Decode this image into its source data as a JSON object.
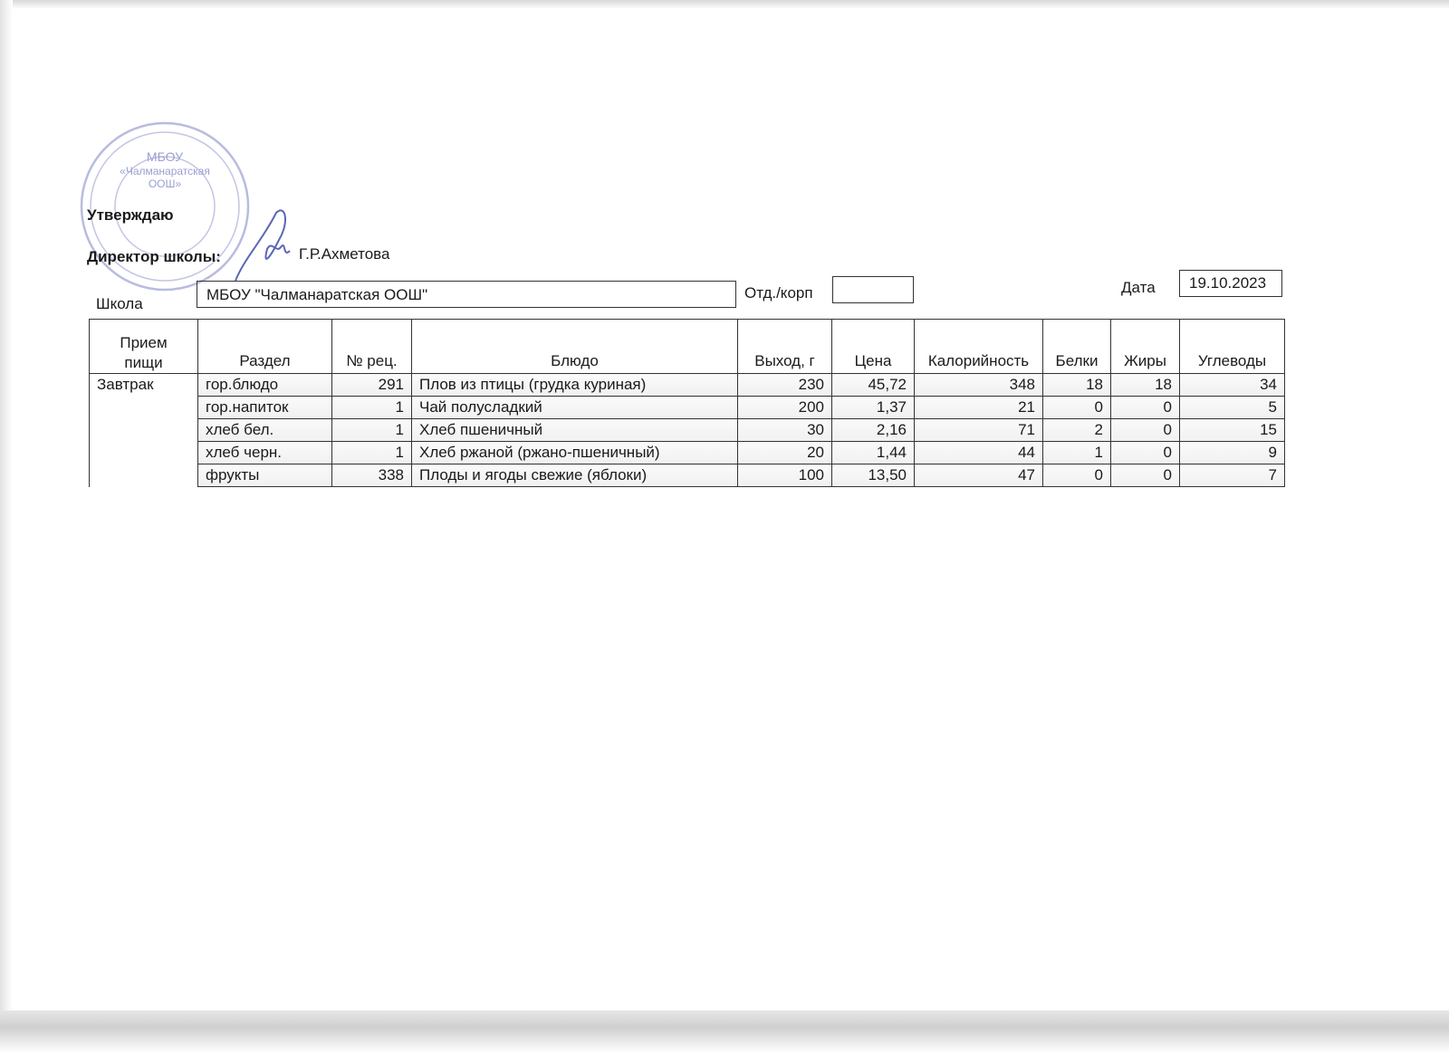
{
  "header": {
    "approve_label": "Утверждаю",
    "director_label": "Директор школы:",
    "director_name": "Г.Р.Ахметова",
    "school_label": "Школа",
    "school_value": "МБОУ \"Чалманаратская ООШ\"",
    "dept_label": "Отд./корп",
    "dept_value": "",
    "date_label": "Дата",
    "date_value": "19.10.2023"
  },
  "stamp": {
    "text": "МБОУ «Чалманаратская ООШ»",
    "color": "#8c93c8"
  },
  "table": {
    "columns": [
      "Прием пищи",
      "Раздел",
      "№ рец.",
      "Блюдо",
      "Выход, г",
      "Цена",
      "Калорийность",
      "Белки",
      "Жиры",
      "Углеводы"
    ],
    "meal": "Завтрак",
    "rows": [
      [
        "гор.блюдо",
        "291",
        "Плов из птицы (грудка куриная)",
        "230",
        "45,72",
        "348",
        "18",
        "18",
        "34"
      ],
      [
        "гор.напиток",
        "1",
        "Чай полусладкий",
        "200",
        "1,37",
        "21",
        "0",
        "0",
        "5"
      ],
      [
        "хлеб бел.",
        "1",
        "Хлеб пшеничный",
        "30",
        "2,16",
        "71",
        "2",
        "0",
        "15"
      ],
      [
        "хлеб черн.",
        "1",
        "Хлеб ржаной (ржано-пшеничный)",
        "20",
        "1,44",
        "44",
        "1",
        "0",
        "9"
      ],
      [
        "фрукты",
        "338",
        "Плоды и ягоды свежие (яблоки)",
        "100",
        "13,50",
        "47",
        "0",
        "0",
        "7"
      ]
    ]
  }
}
